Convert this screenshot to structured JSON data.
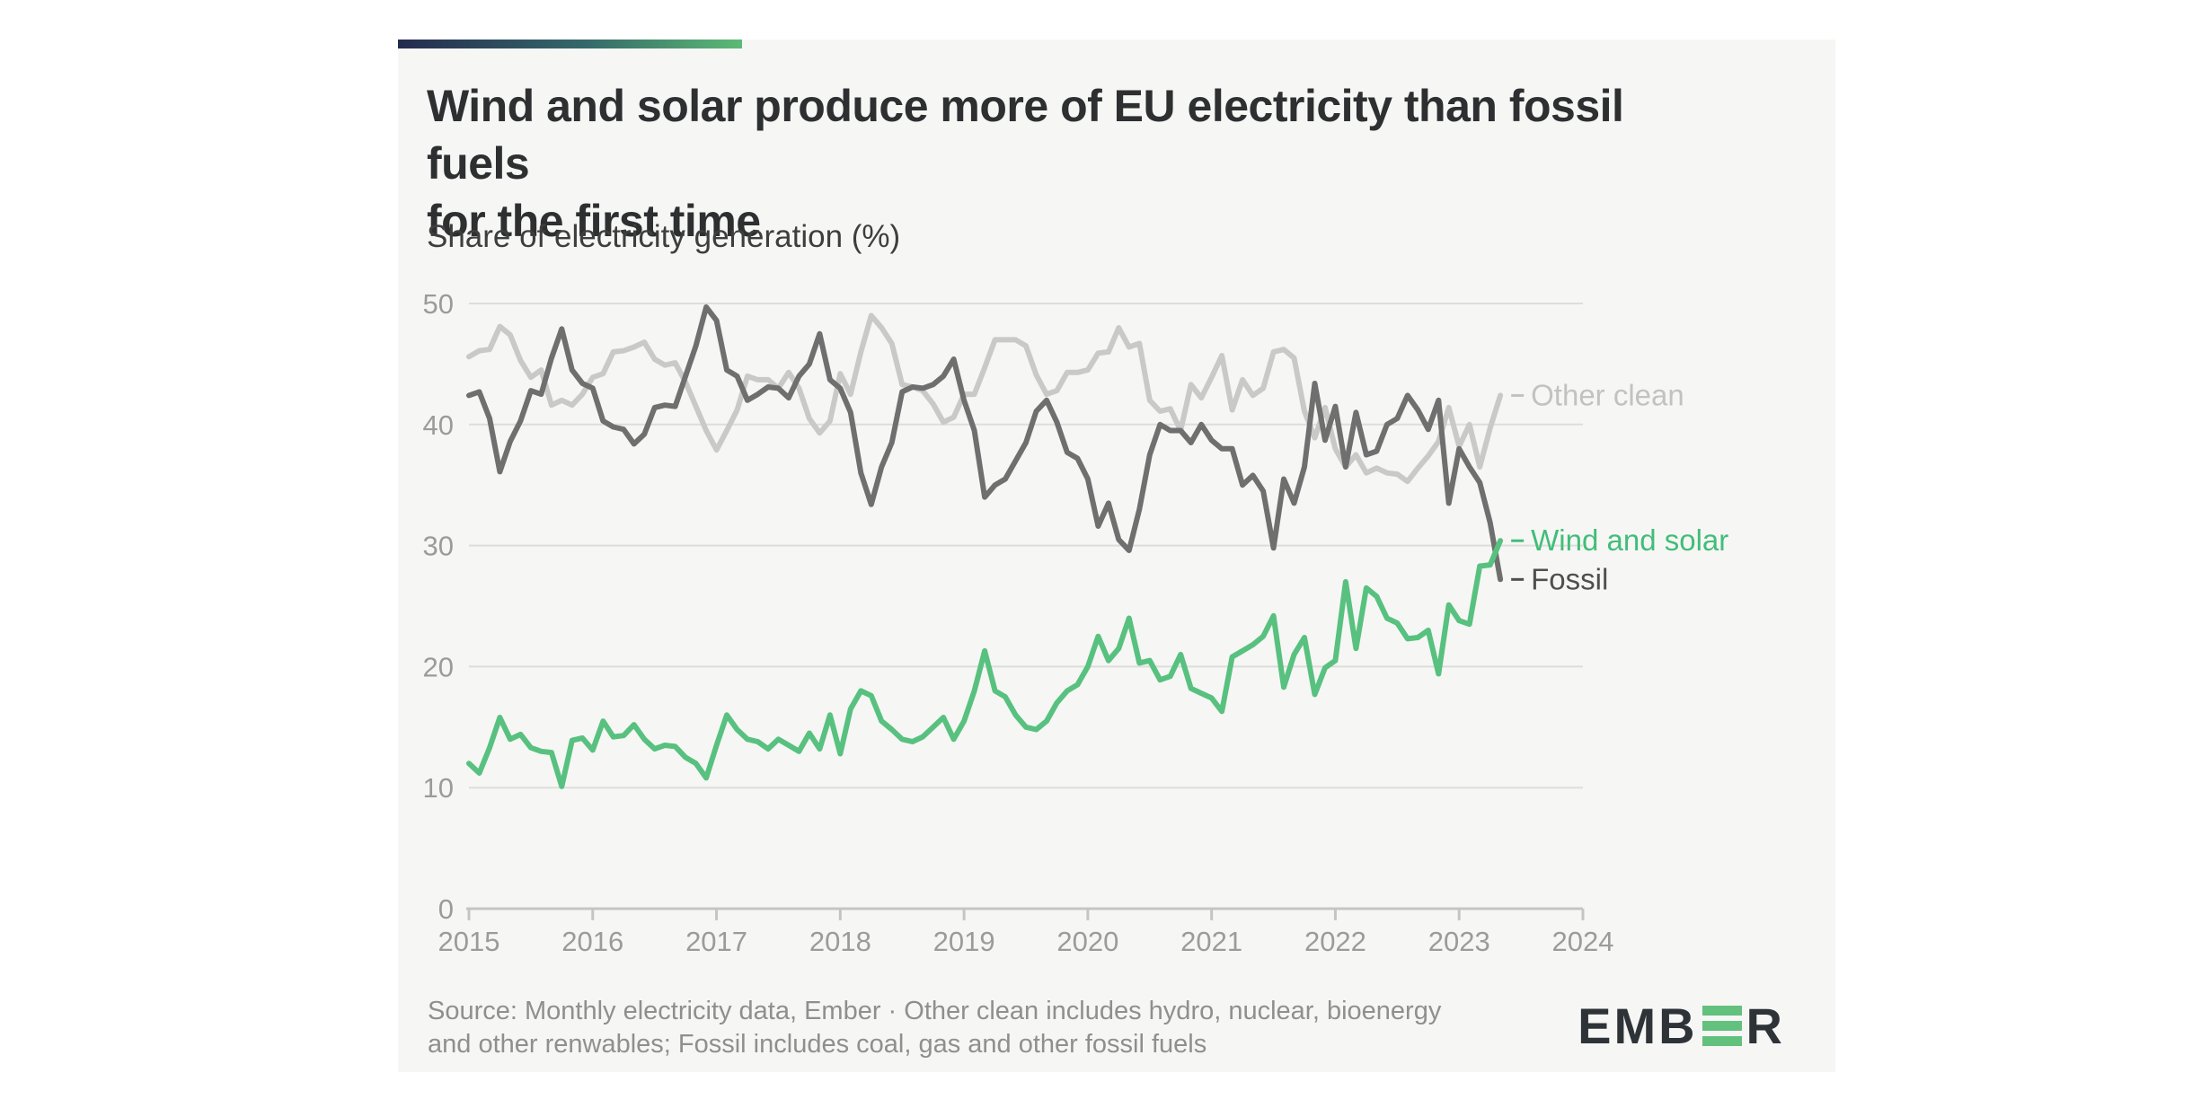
{
  "page": {
    "background": "#ffffff",
    "card_background": "#f6f6f5"
  },
  "accent_bar": {
    "gradient": [
      "#242b4e",
      "#35696a",
      "#5cba75"
    ]
  },
  "header": {
    "title_line1": "Wind and solar produce more of EU electricity than fossil fuels",
    "title_line2": "for the first time",
    "subtitle": "Share of electricity generation (%)"
  },
  "chart_data": {
    "type": "line",
    "title": "Wind and solar produce more of EU electricity than fossil fuels for the first time",
    "ylabel": "Share of electricity generation (%)",
    "x_tick_labels": [
      "2015",
      "2016",
      "2017",
      "2018",
      "2019",
      "2020",
      "2021",
      "2022",
      "2023",
      "2024"
    ],
    "x_start": "2015-01",
    "x_end": "2023-05",
    "points_per_series": 101,
    "y_ticks": [
      0,
      10,
      20,
      30,
      40,
      50
    ],
    "ylim": [
      0,
      50
    ],
    "grid": "horizontal",
    "legend_position": "end-of-line-labels",
    "colors": {
      "grid": "#dddddc",
      "axis": "#c5c5c4",
      "tick_text": "#9b9b9b"
    },
    "series": [
      {
        "name": "Other clean",
        "color": "#c9c9c8",
        "label_color": "#c2c2c1",
        "values": [
          45.6,
          46.1,
          46.2,
          48.1,
          47.4,
          45.3,
          43.9,
          44.5,
          41.6,
          42.0,
          41.6,
          42.5,
          43.9,
          44.2,
          46.0,
          46.1,
          46.4,
          46.8,
          45.4,
          44.9,
          45.1,
          43.5,
          41.5,
          39.5,
          37.9,
          39.5,
          41.2,
          44.0,
          43.7,
          43.7,
          43.0,
          44.3,
          43.0,
          40.5,
          39.3,
          40.3,
          44.2,
          42.5,
          46.0,
          49.0,
          48.0,
          46.7,
          43.3,
          43.1,
          42.8,
          41.7,
          40.2,
          40.6,
          42.5,
          42.5,
          44.7,
          47.0,
          47.0,
          47.0,
          46.5,
          44.1,
          42.5,
          42.8,
          44.3,
          44.3,
          44.5,
          45.9,
          46.0,
          48.0,
          46.4,
          46.7,
          42.0,
          41.1,
          41.3,
          39.5,
          43.3,
          42.2,
          43.9,
          45.7,
          41.2,
          43.7,
          42.4,
          43.0,
          46.0,
          46.2,
          45.5,
          41.1,
          38.9,
          41.4,
          38.0,
          36.5,
          37.5,
          36.0,
          36.4,
          36.0,
          35.9,
          35.3,
          36.4,
          37.4,
          38.6,
          41.4,
          38.2,
          40.0,
          36.5,
          39.7,
          42.4
        ]
      },
      {
        "name": "Fossil",
        "color": "#6f6f6f",
        "label_color": "#4f4f4f",
        "values": [
          42.4,
          42.7,
          40.5,
          36.1,
          38.6,
          40.3,
          42.8,
          42.5,
          45.5,
          47.9,
          44.5,
          43.4,
          43.0,
          40.3,
          39.8,
          39.6,
          38.4,
          39.2,
          41.4,
          41.6,
          41.5,
          44.0,
          46.5,
          49.7,
          48.6,
          44.5,
          44.0,
          42.0,
          42.5,
          43.1,
          43.0,
          42.2,
          44.0,
          45.0,
          47.5,
          43.7,
          43.0,
          41.0,
          36.0,
          33.4,
          36.5,
          38.5,
          42.7,
          43.1,
          43.0,
          43.3,
          44.0,
          45.4,
          42.0,
          39.5,
          34.0,
          35.0,
          35.5,
          37.0,
          38.5,
          41.1,
          42.0,
          40.2,
          37.7,
          37.2,
          35.5,
          31.6,
          33.5,
          30.5,
          29.6,
          33.0,
          37.5,
          40.0,
          39.5,
          39.5,
          38.5,
          40.0,
          38.7,
          38.0,
          38.0,
          35.0,
          35.8,
          34.5,
          29.8,
          35.5,
          33.5,
          36.5,
          43.4,
          38.7,
          41.5,
          36.5,
          41.0,
          37.5,
          37.8,
          40.0,
          40.5,
          42.4,
          41.2,
          39.6,
          42.0,
          33.5,
          38.0,
          36.5,
          35.2,
          31.9,
          27.2
        ]
      },
      {
        "name": "Wind and solar",
        "color": "#58c17f",
        "label_color": "#42bd79",
        "values": [
          12.0,
          11.2,
          13.3,
          15.8,
          14.0,
          14.4,
          13.3,
          13.0,
          12.9,
          10.1,
          13.9,
          14.1,
          13.1,
          15.5,
          14.2,
          14.3,
          15.2,
          14.0,
          13.2,
          13.5,
          13.4,
          12.5,
          12.0,
          10.8,
          13.5,
          16.0,
          14.8,
          14.0,
          13.8,
          13.2,
          14.0,
          13.5,
          13.0,
          14.5,
          13.2,
          16.0,
          12.8,
          16.5,
          18.0,
          17.6,
          15.5,
          14.8,
          14.0,
          13.8,
          14.2,
          15.0,
          15.8,
          14.0,
          15.5,
          18.0,
          21.3,
          18.0,
          17.5,
          16.0,
          15.0,
          14.8,
          15.5,
          17.0,
          18.0,
          18.5,
          20.0,
          22.5,
          20.5,
          21.5,
          24.0,
          20.3,
          20.5,
          18.9,
          19.2,
          21.0,
          18.2,
          17.8,
          17.4,
          16.3,
          20.8,
          21.3,
          21.8,
          22.5,
          24.2,
          18.3,
          21.0,
          22.4,
          17.7,
          19.9,
          20.5,
          27.0,
          21.5,
          26.5,
          25.8,
          24.0,
          23.6,
          22.3,
          22.4,
          23.0,
          19.4,
          25.1,
          23.8,
          23.5,
          28.3,
          28.4,
          30.4
        ]
      }
    ]
  },
  "footer": {
    "source_line1": "Source: Monthly electricity data, Ember · Other clean includes hydro, nuclear, bioenergy",
    "source_line2": "and other renwables; Fossil includes coal, gas and other fossil fuels",
    "logo": {
      "left": "EMB",
      "right": "R",
      "bar_color": "#62c17c",
      "text_color": "#2e3338"
    }
  }
}
